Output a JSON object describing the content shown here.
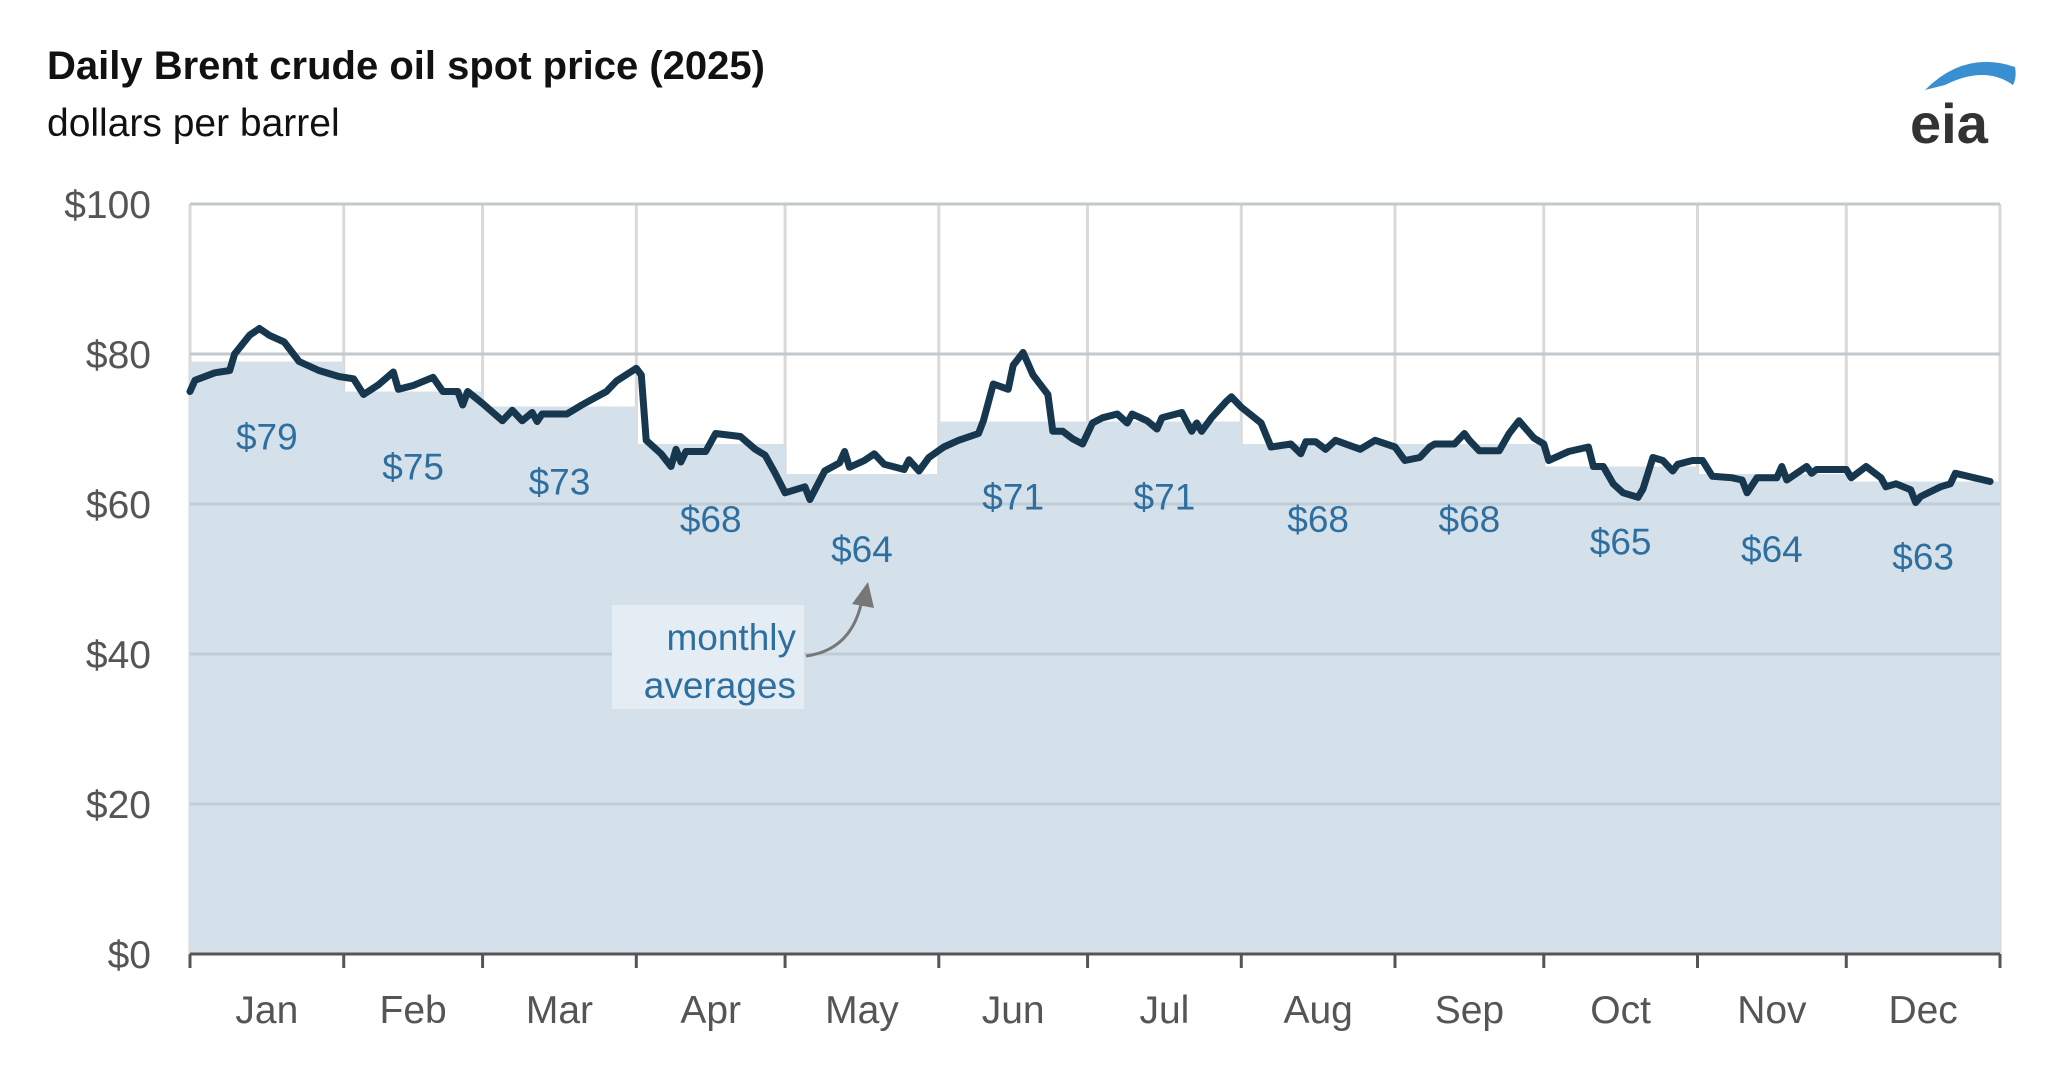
{
  "chart_data": {
    "type": "line",
    "title": "Daily Brent crude oil spot price (2025)",
    "subtitle": "dollars per barrel",
    "xlabel": "",
    "ylabel": "",
    "ylim": [
      0,
      100
    ],
    "yticks": [
      0,
      20,
      40,
      60,
      80,
      100
    ],
    "ytick_labels": [
      "$0",
      "$20",
      "$40",
      "$60",
      "$80",
      "$100"
    ],
    "xlim": [
      "2025-01-01",
      "2025-12-31"
    ],
    "categories": [
      "Jan",
      "Feb",
      "Mar",
      "Apr",
      "May",
      "Jun",
      "Jul",
      "Aug",
      "Sep",
      "Oct",
      "Nov",
      "Dec"
    ],
    "grid": true,
    "legend": "none",
    "colors": {
      "line": "#17374f",
      "fill": "#d5e1ea",
      "label": "#2f6fa0",
      "grid": "#d9d9d9"
    },
    "series": [
      {
        "type": "step-area",
        "values": [
          79,
          75,
          73,
          68,
          64,
          71,
          71,
          68,
          68,
          65,
          64,
          63
        ],
        "data_labels": [
          "$79",
          "$75",
          "$73",
          "$68",
          "$64",
          "$71",
          "$71",
          "$68",
          "$68",
          "$65",
          "$64",
          "$63"
        ]
      },
      {
        "type": "line",
        "points": [
          [
            "2025-01-01",
            75
          ],
          [
            "2025-01-02",
            76.5
          ],
          [
            "2025-01-06",
            77.5
          ],
          [
            "2025-01-09",
            77.8
          ],
          [
            "2025-01-10",
            80
          ],
          [
            "2025-01-13",
            82.5
          ],
          [
            "2025-01-15",
            83.4
          ],
          [
            "2025-01-17",
            82.5
          ],
          [
            "2025-01-20",
            81.6
          ],
          [
            "2025-01-23",
            79
          ],
          [
            "2025-01-27",
            77.8
          ],
          [
            "2025-01-31",
            77
          ],
          [
            "2025-02-03",
            76.7
          ],
          [
            "2025-02-05",
            74.6
          ],
          [
            "2025-02-08",
            75.9
          ],
          [
            "2025-02-11",
            77.6
          ],
          [
            "2025-02-12",
            75.3
          ],
          [
            "2025-02-15",
            75.8
          ],
          [
            "2025-02-19",
            76.9
          ],
          [
            "2025-02-21",
            75
          ],
          [
            "2025-02-24",
            75
          ],
          [
            "2025-02-25",
            73.2
          ],
          [
            "2025-02-26",
            75
          ],
          [
            "2025-03-01",
            73.4
          ],
          [
            "2025-03-05",
            71.1
          ],
          [
            "2025-03-07",
            72.5
          ],
          [
            "2025-03-09",
            71.1
          ],
          [
            "2025-03-11",
            72.2
          ],
          [
            "2025-03-12",
            71
          ],
          [
            "2025-03-13",
            72
          ],
          [
            "2025-03-18",
            72
          ],
          [
            "2025-03-21",
            73.2
          ],
          [
            "2025-03-24",
            74.3
          ],
          [
            "2025-03-26",
            75
          ],
          [
            "2025-03-28",
            76.4
          ],
          [
            "2025-04-01",
            78.1
          ],
          [
            "2025-04-02",
            77.2
          ],
          [
            "2025-04-03",
            68.5
          ],
          [
            "2025-04-06",
            66.7
          ],
          [
            "2025-04-08",
            65
          ],
          [
            "2025-04-09",
            67.3
          ],
          [
            "2025-04-10",
            65.6
          ],
          [
            "2025-04-11",
            67
          ],
          [
            "2025-04-15",
            67
          ],
          [
            "2025-04-17",
            69.4
          ],
          [
            "2025-04-22",
            69
          ],
          [
            "2025-04-25",
            67.3
          ],
          [
            "2025-04-27",
            66.5
          ],
          [
            "2025-04-29",
            64.1
          ],
          [
            "2025-05-01",
            61.5
          ],
          [
            "2025-05-05",
            62.3
          ],
          [
            "2025-05-06",
            60.6
          ],
          [
            "2025-05-09",
            64.4
          ],
          [
            "2025-05-12",
            65.5
          ],
          [
            "2025-05-13",
            67
          ],
          [
            "2025-05-14",
            64.9
          ],
          [
            "2025-05-17",
            65.8
          ],
          [
            "2025-05-19",
            66.7
          ],
          [
            "2025-05-21",
            65.3
          ],
          [
            "2025-05-25",
            64.6
          ],
          [
            "2025-05-26",
            65.9
          ],
          [
            "2025-05-28",
            64.4
          ],
          [
            "2025-05-30",
            66.2
          ],
          [
            "2025-06-02",
            67.6
          ],
          [
            "2025-06-05",
            68.5
          ],
          [
            "2025-06-09",
            69.4
          ],
          [
            "2025-06-10",
            71.1
          ],
          [
            "2025-06-12",
            76
          ],
          [
            "2025-06-15",
            75.3
          ],
          [
            "2025-06-16",
            78.5
          ],
          [
            "2025-06-18",
            80.2
          ],
          [
            "2025-06-20",
            77.2
          ],
          [
            "2025-06-23",
            74.6
          ],
          [
            "2025-06-24",
            69.7
          ],
          [
            "2025-06-26",
            69.7
          ],
          [
            "2025-06-28",
            68.7
          ],
          [
            "2025-06-30",
            68
          ],
          [
            "2025-07-02",
            70.8
          ],
          [
            "2025-07-04",
            71.5
          ],
          [
            "2025-07-07",
            72
          ],
          [
            "2025-07-09",
            70.8
          ],
          [
            "2025-07-10",
            72
          ],
          [
            "2025-07-13",
            71.1
          ],
          [
            "2025-07-15",
            70
          ],
          [
            "2025-07-16",
            71.5
          ],
          [
            "2025-07-20",
            72.2
          ],
          [
            "2025-07-22",
            69.7
          ],
          [
            "2025-07-23",
            70.8
          ],
          [
            "2025-07-24",
            69.7
          ],
          [
            "2025-07-26",
            71.5
          ],
          [
            "2025-07-29",
            73.7
          ],
          [
            "2025-07-30",
            74.3
          ],
          [
            "2025-08-01",
            72.9
          ],
          [
            "2025-08-05",
            70.8
          ],
          [
            "2025-08-07",
            67.6
          ],
          [
            "2025-08-11",
            68
          ],
          [
            "2025-08-13",
            66.7
          ],
          [
            "2025-08-14",
            68.3
          ],
          [
            "2025-08-16",
            68.3
          ],
          [
            "2025-08-18",
            67.3
          ],
          [
            "2025-08-20",
            68.5
          ],
          [
            "2025-08-25",
            67.3
          ],
          [
            "2025-08-28",
            68.5
          ],
          [
            "2025-09-01",
            67.6
          ],
          [
            "2025-09-03",
            65.8
          ],
          [
            "2025-09-06",
            66.2
          ],
          [
            "2025-09-08",
            67.6
          ],
          [
            "2025-09-09",
            68
          ],
          [
            "2025-09-13",
            68
          ],
          [
            "2025-09-15",
            69.4
          ],
          [
            "2025-09-16",
            68.5
          ],
          [
            "2025-09-18",
            67.1
          ],
          [
            "2025-09-22",
            67.1
          ],
          [
            "2025-09-24",
            69.4
          ],
          [
            "2025-09-26",
            71.1
          ],
          [
            "2025-09-29",
            68.8
          ],
          [
            "2025-10-01",
            68
          ],
          [
            "2025-10-02",
            65.8
          ],
          [
            "2025-10-06",
            67
          ],
          [
            "2025-10-10",
            67.6
          ],
          [
            "2025-10-11",
            65
          ],
          [
            "2025-10-13",
            65
          ],
          [
            "2025-10-15",
            62.7
          ],
          [
            "2025-10-17",
            61.5
          ],
          [
            "2025-10-20",
            60.9
          ],
          [
            "2025-10-21",
            62
          ],
          [
            "2025-10-23",
            66.2
          ],
          [
            "2025-10-25",
            65.8
          ],
          [
            "2025-10-27",
            64.4
          ],
          [
            "2025-10-28",
            65.3
          ],
          [
            "2025-10-31",
            65.8
          ],
          [
            "2025-11-02",
            65.8
          ],
          [
            "2025-11-04",
            63.7
          ],
          [
            "2025-11-08",
            63.5
          ],
          [
            "2025-11-10",
            63.2
          ],
          [
            "2025-11-11",
            61.5
          ],
          [
            "2025-11-13",
            63.5
          ],
          [
            "2025-11-17",
            63.5
          ],
          [
            "2025-11-18",
            65
          ],
          [
            "2025-11-19",
            63.2
          ],
          [
            "2025-11-23",
            65
          ],
          [
            "2025-11-24",
            64.1
          ],
          [
            "2025-11-25",
            64.6
          ],
          [
            "2025-12-01",
            64.6
          ],
          [
            "2025-12-02",
            63.5
          ],
          [
            "2025-12-05",
            65
          ],
          [
            "2025-12-08",
            63.5
          ],
          [
            "2025-12-09",
            62.3
          ],
          [
            "2025-12-11",
            62.7
          ],
          [
            "2025-12-14",
            61.9
          ],
          [
            "2025-12-15",
            60.2
          ],
          [
            "2025-12-16",
            61
          ],
          [
            "2025-12-20",
            62.3
          ],
          [
            "2025-12-22",
            62.7
          ],
          [
            "2025-12-23",
            64.1
          ],
          [
            "2025-12-30",
            63
          ]
        ]
      }
    ],
    "annotations": [
      {
        "text_line1": "monthly",
        "text_line2": "averages",
        "points_to": "May"
      }
    ]
  },
  "logo": {
    "text": "eia",
    "swoosh_color": "#3a8fd0",
    "text_color": "#333333"
  }
}
